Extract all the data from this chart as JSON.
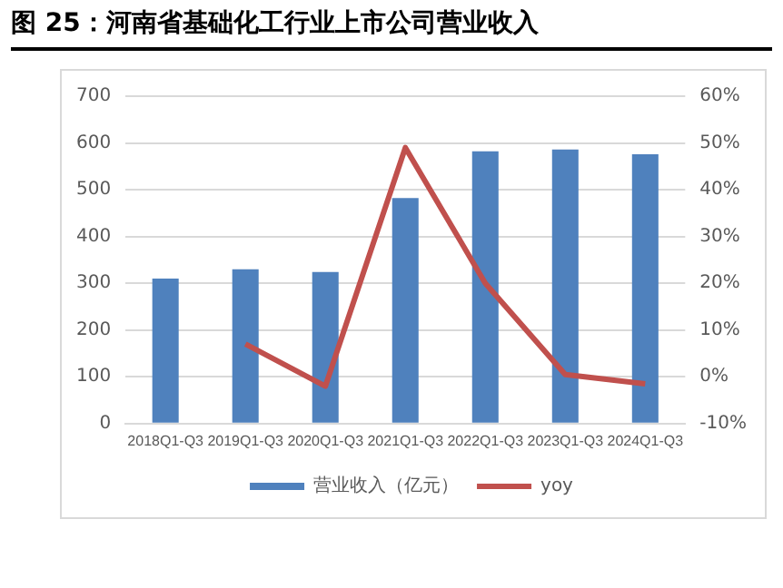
{
  "chart_data": {
    "type": "bar",
    "title": "图 25：河南省基础化工行业上市公司营业收入",
    "categories": [
      "2018Q1-Q3",
      "2019Q1-Q3",
      "2020Q1-Q3",
      "2021Q1-Q3",
      "2022Q1-Q3",
      "2023Q1-Q3",
      "2024Q1-Q3"
    ],
    "series": [
      {
        "name": "营业收入（亿元）",
        "color": "#4f81bd",
        "values": [
          310,
          330,
          324,
          482,
          582,
          586,
          576
        ]
      },
      {
        "name": "yoy",
        "type": "line",
        "axis": "y2",
        "color": "#c0504d",
        "values": [
          null,
          7,
          -2,
          49,
          20,
          0.5,
          -1.5
        ]
      }
    ],
    "ylim": [
      0,
      700
    ],
    "yticks": [
      0,
      100,
      200,
      300,
      400,
      500,
      600,
      700
    ],
    "y2lim": [
      -10,
      60
    ],
    "y2ticks": [
      {
        "value": -10,
        "label": "-10%"
      },
      {
        "value": 0,
        "label": "0%"
      },
      {
        "value": 10,
        "label": "10%"
      },
      {
        "value": 20,
        "label": "20%"
      },
      {
        "value": 30,
        "label": "30%"
      },
      {
        "value": 40,
        "label": "40%"
      },
      {
        "value": 50,
        "label": "50%"
      },
      {
        "value": 60,
        "label": "60%"
      }
    ],
    "grid": "y",
    "legend": "bottom",
    "marker": "none"
  }
}
